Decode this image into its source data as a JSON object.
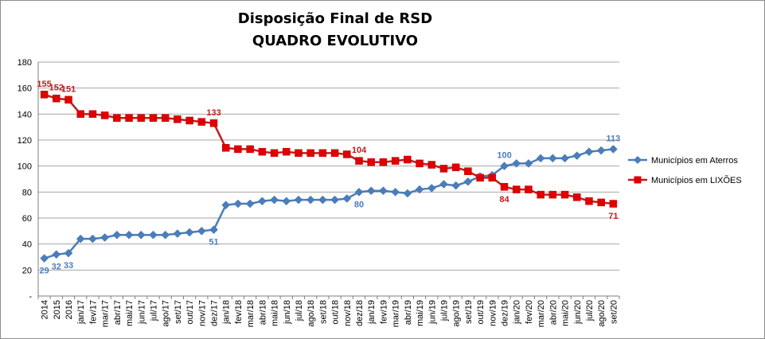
{
  "chart_data": {
    "type": "line",
    "title": "Disposição Final de RSD",
    "subtitle": "QUADRO EVOLUTIVO",
    "ylim": [
      0,
      180
    ],
    "yticks": [
      {
        "v": 0,
        "label": "-"
      },
      {
        "v": 20,
        "label": "20"
      },
      {
        "v": 40,
        "label": "40"
      },
      {
        "v": 60,
        "label": "60"
      },
      {
        "v": 80,
        "label": "80"
      },
      {
        "v": 100,
        "label": "100"
      },
      {
        "v": 120,
        "label": "120"
      },
      {
        "v": 140,
        "label": "140"
      },
      {
        "v": 160,
        "label": "160"
      },
      {
        "v": 180,
        "label": "180"
      }
    ],
    "grid": true,
    "legend_position": "right",
    "categories": [
      "2014",
      "2015",
      "2016",
      "jan/17",
      "fev/17",
      "mar/17",
      "abr/17",
      "mai/17",
      "jun/17",
      "jul/17",
      "ago/17",
      "set/17",
      "out/17",
      "nov/17",
      "dez/17",
      "jan/18",
      "fev/18",
      "mar/18",
      "abr/18",
      "mai/18",
      "jun/18",
      "jul/18",
      "ago/18",
      "set/18",
      "out/18",
      "nov/18",
      "dez/18",
      "jan/19",
      "fev/19",
      "mar/19",
      "abr/19",
      "mai/19",
      "jun/19",
      "jul/19",
      "ago/19",
      "set/19",
      "out/19",
      "nov/19",
      "dez/19",
      "jan/20",
      "fev/20",
      "mar/20",
      "abr/20",
      "mai/20",
      "jun/20",
      "jul/20",
      "ago/20",
      "set/20"
    ],
    "series": [
      {
        "name": "Municípios em Aterros",
        "color": "#4a7ebb",
        "marker": "diamond",
        "values": [
          29,
          32,
          33,
          44,
          44,
          45,
          47,
          47,
          47,
          47,
          47,
          48,
          49,
          50,
          51,
          70,
          71,
          71,
          73,
          74,
          73,
          74,
          74,
          74,
          74,
          75,
          80,
          81,
          81,
          80,
          79,
          82,
          83,
          86,
          85,
          88,
          92,
          93,
          100,
          102,
          102,
          106,
          106,
          106,
          108,
          111,
          112,
          113
        ],
        "labels": [
          {
            "i": 0,
            "text": "29",
            "pos": "below"
          },
          {
            "i": 1,
            "text": "32",
            "pos": "below"
          },
          {
            "i": 2,
            "text": "33",
            "pos": "below"
          },
          {
            "i": 14,
            "text": "51",
            "pos": "below"
          },
          {
            "i": 26,
            "text": "80",
            "pos": "below"
          },
          {
            "i": 38,
            "text": "100",
            "pos": "above"
          },
          {
            "i": 47,
            "text": "113",
            "pos": "above"
          }
        ]
      },
      {
        "name": "Municípios em LIXÕES",
        "color": "#be1e1e",
        "marker": "square",
        "values": [
          155,
          152,
          151,
          140,
          140,
          139,
          137,
          137,
          137,
          137,
          137,
          136,
          135,
          134,
          133,
          114,
          113,
          113,
          111,
          110,
          111,
          110,
          110,
          110,
          110,
          109,
          104,
          103,
          103,
          104,
          105,
          102,
          101,
          98,
          99,
          96,
          91,
          91,
          84,
          82,
          82,
          78,
          78,
          78,
          76,
          73,
          72,
          71
        ],
        "labels": [
          {
            "i": 0,
            "text": "155",
            "pos": "above"
          },
          {
            "i": 1,
            "text": "152",
            "pos": "above"
          },
          {
            "i": 2,
            "text": "151",
            "pos": "above"
          },
          {
            "i": 14,
            "text": "133",
            "pos": "above"
          },
          {
            "i": 26,
            "text": "104",
            "pos": "above"
          },
          {
            "i": 38,
            "text": "84",
            "pos": "below"
          },
          {
            "i": 47,
            "text": "71",
            "pos": "below"
          }
        ]
      }
    ]
  }
}
